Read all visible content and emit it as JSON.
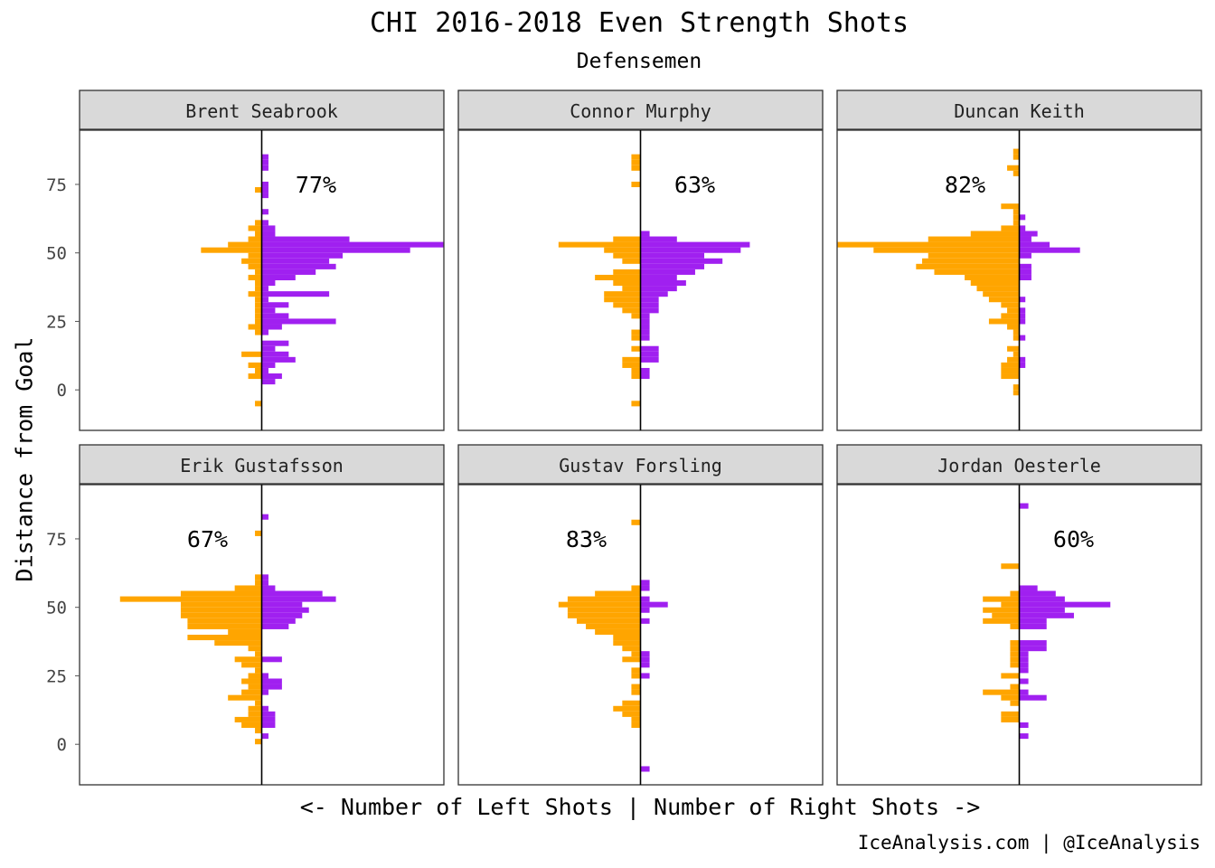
{
  "colors": {
    "left": "#FFA500",
    "right": "#A020F0",
    "strip": "#D9D9D9",
    "panel_border": "#333333"
  },
  "chart_data": {
    "type": "bar",
    "orientation": "diverging-horizontal",
    "title": "CHI 2016-2018 Even Strength Shots",
    "subtitle": "Defensemen",
    "xlabel": "<- Number of Left Shots | Number of Right Shots ->",
    "ylabel": "Distance from Goal",
    "caption": "IceAnalysis.com | @IceAnalysis",
    "y_ticks": [
      0,
      25,
      50,
      75
    ],
    "ylim": [
      -15,
      95
    ],
    "bin_width": 2,
    "panels": [
      {
        "name": "Brent Seabrook",
        "pct": "77%",
        "xlim": [
          -27,
          27
        ],
        "left": [
          [
            -5,
            1
          ],
          [
            5,
            2
          ],
          [
            7,
            1
          ],
          [
            9,
            2
          ],
          [
            13,
            3
          ],
          [
            21,
            1
          ],
          [
            23,
            2
          ],
          [
            25,
            1
          ],
          [
            27,
            1
          ],
          [
            29,
            1
          ],
          [
            31,
            1
          ],
          [
            33,
            1
          ],
          [
            35,
            2
          ],
          [
            37,
            1
          ],
          [
            39,
            1
          ],
          [
            41,
            2
          ],
          [
            43,
            1
          ],
          [
            45,
            2
          ],
          [
            47,
            3
          ],
          [
            49,
            2
          ],
          [
            51,
            9
          ],
          [
            53,
            5
          ],
          [
            55,
            2
          ],
          [
            57,
            1
          ],
          [
            59,
            2
          ],
          [
            61,
            1
          ],
          [
            73,
            1
          ]
        ],
        "right": [
          [
            3,
            2
          ],
          [
            5,
            3
          ],
          [
            7,
            1
          ],
          [
            9,
            2
          ],
          [
            11,
            5
          ],
          [
            13,
            4
          ],
          [
            15,
            2
          ],
          [
            17,
            4
          ],
          [
            21,
            1
          ],
          [
            23,
            3
          ],
          [
            25,
            11
          ],
          [
            27,
            4
          ],
          [
            29,
            2
          ],
          [
            31,
            4
          ],
          [
            33,
            1
          ],
          [
            35,
            10
          ],
          [
            37,
            1
          ],
          [
            39,
            2
          ],
          [
            41,
            5
          ],
          [
            43,
            8
          ],
          [
            45,
            11
          ],
          [
            47,
            10
          ],
          [
            49,
            12
          ],
          [
            51,
            22
          ],
          [
            53,
            27
          ],
          [
            55,
            13
          ],
          [
            57,
            2
          ],
          [
            59,
            2
          ],
          [
            61,
            1
          ],
          [
            65,
            1
          ],
          [
            71,
            1
          ],
          [
            73,
            1
          ],
          [
            75,
            1
          ],
          [
            81,
            1
          ],
          [
            83,
            1
          ],
          [
            85,
            1
          ]
        ]
      },
      {
        "name": "Connor Murphy",
        "pct": "63%",
        "xlim": [
          -20,
          20
        ],
        "left": [
          [
            -5,
            1
          ],
          [
            5,
            1
          ],
          [
            7,
            1
          ],
          [
            9,
            2
          ],
          [
            11,
            2
          ],
          [
            15,
            1
          ],
          [
            19,
            1
          ],
          [
            21,
            1
          ],
          [
            27,
            1
          ],
          [
            29,
            2
          ],
          [
            31,
            3
          ],
          [
            33,
            4
          ],
          [
            35,
            4
          ],
          [
            37,
            2
          ],
          [
            39,
            3
          ],
          [
            41,
            5
          ],
          [
            43,
            3
          ],
          [
            47,
            2
          ],
          [
            49,
            3
          ],
          [
            51,
            4
          ],
          [
            53,
            9
          ],
          [
            55,
            3
          ],
          [
            75,
            1
          ],
          [
            81,
            1
          ],
          [
            83,
            1
          ],
          [
            85,
            1
          ]
        ],
        "right": [
          [
            5,
            1
          ],
          [
            7,
            1
          ],
          [
            11,
            2
          ],
          [
            13,
            2
          ],
          [
            15,
            2
          ],
          [
            19,
            1
          ],
          [
            21,
            1
          ],
          [
            23,
            1
          ],
          [
            25,
            1
          ],
          [
            27,
            1
          ],
          [
            29,
            2
          ],
          [
            31,
            2
          ],
          [
            33,
            2
          ],
          [
            35,
            3
          ],
          [
            37,
            4
          ],
          [
            39,
            5
          ],
          [
            41,
            4
          ],
          [
            43,
            6
          ],
          [
            45,
            7
          ],
          [
            47,
            9
          ],
          [
            49,
            7
          ],
          [
            51,
            11
          ],
          [
            53,
            12
          ],
          [
            55,
            4
          ],
          [
            57,
            1
          ]
        ]
      },
      {
        "name": "Duncan Keith",
        "pct": "82%",
        "xlim": [
          -30,
          30
        ],
        "left": [
          [
            -1,
            1
          ],
          [
            1,
            1
          ],
          [
            5,
            3
          ],
          [
            7,
            3
          ],
          [
            9,
            3
          ],
          [
            11,
            2
          ],
          [
            13,
            1
          ],
          [
            15,
            2
          ],
          [
            19,
            1
          ],
          [
            21,
            1
          ],
          [
            23,
            2
          ],
          [
            25,
            5
          ],
          [
            27,
            3
          ],
          [
            29,
            2
          ],
          [
            31,
            3
          ],
          [
            33,
            5
          ],
          [
            35,
            6
          ],
          [
            37,
            7
          ],
          [
            39,
            8
          ],
          [
            41,
            9
          ],
          [
            43,
            14
          ],
          [
            45,
            17
          ],
          [
            47,
            16
          ],
          [
            49,
            15
          ],
          [
            51,
            24
          ],
          [
            53,
            30
          ],
          [
            55,
            15
          ],
          [
            57,
            8
          ],
          [
            59,
            3
          ],
          [
            61,
            1
          ],
          [
            63,
            1
          ],
          [
            65,
            1
          ],
          [
            67,
            3
          ],
          [
            79,
            1
          ],
          [
            81,
            2
          ],
          [
            85,
            1
          ],
          [
            87,
            1
          ]
        ],
        "right": [
          [
            9,
            1
          ],
          [
            11,
            1
          ],
          [
            19,
            1
          ],
          [
            25,
            1
          ],
          [
            27,
            1
          ],
          [
            29,
            1
          ],
          [
            33,
            1
          ],
          [
            41,
            2
          ],
          [
            43,
            2
          ],
          [
            45,
            2
          ],
          [
            49,
            2
          ],
          [
            51,
            10
          ],
          [
            53,
            5
          ],
          [
            55,
            2
          ],
          [
            57,
            3
          ],
          [
            59,
            1
          ],
          [
            63,
            1
          ]
        ]
      },
      {
        "name": "Erik Gustafsson",
        "pct": "67%",
        "xlim": [
          -27,
          27
        ],
        "left": [
          [
            1,
            1
          ],
          [
            5,
            1
          ],
          [
            7,
            3
          ],
          [
            9,
            4
          ],
          [
            11,
            2
          ],
          [
            13,
            2
          ],
          [
            15,
            1
          ],
          [
            17,
            5
          ],
          [
            19,
            3
          ],
          [
            21,
            2
          ],
          [
            23,
            3
          ],
          [
            25,
            2
          ],
          [
            27,
            1
          ],
          [
            29,
            3
          ],
          [
            31,
            4
          ],
          [
            33,
            1
          ],
          [
            35,
            2
          ],
          [
            37,
            7
          ],
          [
            39,
            11
          ],
          [
            41,
            5
          ],
          [
            43,
            11
          ],
          [
            45,
            11
          ],
          [
            47,
            12
          ],
          [
            49,
            12
          ],
          [
            51,
            12
          ],
          [
            53,
            21
          ],
          [
            55,
            12
          ],
          [
            57,
            4
          ],
          [
            59,
            1
          ],
          [
            61,
            1
          ],
          [
            77,
            1
          ]
        ],
        "right": [
          [
            3,
            1
          ],
          [
            7,
            2
          ],
          [
            9,
            2
          ],
          [
            11,
            2
          ],
          [
            13,
            1
          ],
          [
            19,
            1
          ],
          [
            21,
            3
          ],
          [
            23,
            3
          ],
          [
            25,
            1
          ],
          [
            31,
            3
          ],
          [
            43,
            4
          ],
          [
            45,
            5
          ],
          [
            47,
            6
          ],
          [
            49,
            7
          ],
          [
            51,
            6
          ],
          [
            53,
            11
          ],
          [
            55,
            9
          ],
          [
            57,
            2
          ],
          [
            59,
            1
          ],
          [
            61,
            1
          ],
          [
            83,
            1
          ]
        ]
      },
      {
        "name": "Gustav Forsling",
        "pct": "83%",
        "xlim": [
          -20,
          20
        ],
        "left": [
          [
            7,
            1
          ],
          [
            9,
            1
          ],
          [
            11,
            2
          ],
          [
            13,
            3
          ],
          [
            15,
            2
          ],
          [
            19,
            1
          ],
          [
            21,
            1
          ],
          [
            25,
            1
          ],
          [
            27,
            1
          ],
          [
            31,
            2
          ],
          [
            33,
            1
          ],
          [
            35,
            2
          ],
          [
            37,
            3
          ],
          [
            39,
            3
          ],
          [
            41,
            5
          ],
          [
            43,
            6
          ],
          [
            45,
            7
          ],
          [
            47,
            8
          ],
          [
            49,
            8
          ],
          [
            51,
            9
          ],
          [
            53,
            8
          ],
          [
            55,
            5
          ],
          [
            57,
            1
          ],
          [
            81,
            1
          ]
        ],
        "right": [
          [
            -9,
            1
          ],
          [
            25,
            1
          ],
          [
            29,
            1
          ],
          [
            31,
            1
          ],
          [
            33,
            1
          ],
          [
            45,
            1
          ],
          [
            49,
            1
          ],
          [
            51,
            3
          ],
          [
            53,
            1
          ],
          [
            57,
            1
          ],
          [
            59,
            1
          ]
        ]
      },
      {
        "name": "Jordan Oesterle",
        "pct": "60%",
        "xlim": [
          -20,
          20
        ],
        "left": [
          [
            9,
            2
          ],
          [
            11,
            2
          ],
          [
            15,
            1
          ],
          [
            17,
            2
          ],
          [
            19,
            4
          ],
          [
            21,
            1
          ],
          [
            25,
            2
          ],
          [
            29,
            1
          ],
          [
            31,
            1
          ],
          [
            33,
            1
          ],
          [
            35,
            1
          ],
          [
            37,
            1
          ],
          [
            43,
            1
          ],
          [
            45,
            4
          ],
          [
            47,
            3
          ],
          [
            49,
            4
          ],
          [
            51,
            2
          ],
          [
            53,
            4
          ],
          [
            55,
            1
          ],
          [
            65,
            2
          ]
        ],
        "right": [
          [
            3,
            1
          ],
          [
            7,
            1
          ],
          [
            17,
            3
          ],
          [
            19,
            1
          ],
          [
            23,
            1
          ],
          [
            27,
            1
          ],
          [
            29,
            1
          ],
          [
            31,
            1
          ],
          [
            33,
            1
          ],
          [
            35,
            3
          ],
          [
            37,
            3
          ],
          [
            43,
            3
          ],
          [
            45,
            3
          ],
          [
            47,
            6
          ],
          [
            49,
            5
          ],
          [
            51,
            10
          ],
          [
            53,
            5
          ],
          [
            55,
            4
          ],
          [
            57,
            2
          ],
          [
            87,
            1
          ]
        ]
      }
    ]
  }
}
